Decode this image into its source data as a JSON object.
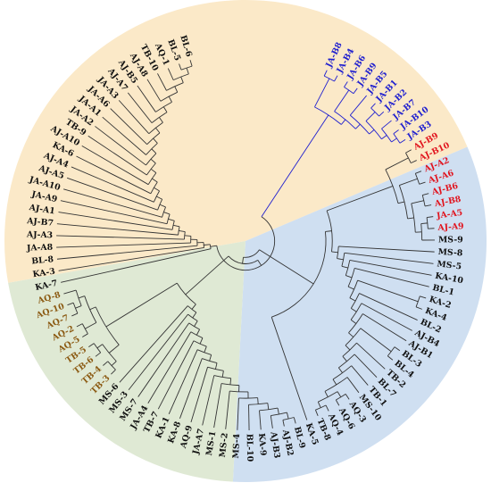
{
  "colors": {
    "sector_yellow": "#fbe9c8",
    "sector_blue": "#cfdff1",
    "sector_green": "#dfe9d4",
    "branch": "#333333",
    "blue": "#1f1fcf",
    "red": "#e1141e",
    "brown": "#8b5a12",
    "black": "#111111"
  },
  "tree": {
    "taxa": [
      {
        "label": "JA-B8",
        "color": "blue"
      },
      {
        "label": "JA-B4",
        "color": "blue"
      },
      {
        "label": "JA-B6",
        "color": "blue"
      },
      {
        "label": "JA-B9",
        "color": "blue"
      },
      {
        "label": "JA-B5",
        "color": "blue"
      },
      {
        "label": "JA-B1",
        "color": "blue"
      },
      {
        "label": "JA-B2",
        "color": "blue"
      },
      {
        "label": "JA-B7",
        "color": "blue"
      },
      {
        "label": "JA-B10",
        "color": "blue"
      },
      {
        "label": "JA-B3",
        "color": "blue"
      },
      {
        "label": "AJ-B9",
        "color": "red"
      },
      {
        "label": "AJ-B10",
        "color": "red"
      },
      {
        "label": "AJ-A2",
        "color": "red"
      },
      {
        "label": "AJ-A6",
        "color": "red"
      },
      {
        "label": "AJ-B6",
        "color": "red"
      },
      {
        "label": "AJ-B8",
        "color": "red"
      },
      {
        "label": "JA-A5",
        "color": "red"
      },
      {
        "label": "AJ-A9",
        "color": "red"
      },
      {
        "label": "MS-9",
        "color": "black"
      },
      {
        "label": "MS-8",
        "color": "black"
      },
      {
        "label": "MS-5",
        "color": "black"
      },
      {
        "label": "KA-10",
        "color": "black"
      },
      {
        "label": "BL-1",
        "color": "black"
      },
      {
        "label": "KA-2",
        "color": "black"
      },
      {
        "label": "KA-4",
        "color": "black"
      },
      {
        "label": "BL-2",
        "color": "black"
      },
      {
        "label": "AJ-B4",
        "color": "black"
      },
      {
        "label": "AJ-B1",
        "color": "black"
      },
      {
        "label": "BL-3",
        "color": "black"
      },
      {
        "label": "BL-4",
        "color": "black"
      },
      {
        "label": "TB-2",
        "color": "black"
      },
      {
        "label": "BL-7",
        "color": "black"
      },
      {
        "label": "TB-1",
        "color": "black"
      },
      {
        "label": "MS-10",
        "color": "black"
      },
      {
        "label": "AQ-3",
        "color": "black"
      },
      {
        "label": "AQ-6",
        "color": "black"
      },
      {
        "label": "AQ-4",
        "color": "black"
      },
      {
        "label": "TB-8",
        "color": "black"
      },
      {
        "label": "KA-5",
        "color": "black"
      },
      {
        "label": "BL-9",
        "color": "black"
      },
      {
        "label": "AJ-B2",
        "color": "black"
      },
      {
        "label": "AJ-B3",
        "color": "black"
      },
      {
        "label": "KA-9",
        "color": "black"
      },
      {
        "label": "BL-10",
        "color": "black"
      },
      {
        "label": "MS-4",
        "color": "black"
      },
      {
        "label": "MS-2",
        "color": "black"
      },
      {
        "label": "MS-1",
        "color": "black"
      },
      {
        "label": "JA-A7",
        "color": "black"
      },
      {
        "label": "AQ-9",
        "color": "black"
      },
      {
        "label": "KA-8",
        "color": "black"
      },
      {
        "label": "KA-1",
        "color": "black"
      },
      {
        "label": "TB-7",
        "color": "black"
      },
      {
        "label": "JA-A4",
        "color": "black"
      },
      {
        "label": "MS-7",
        "color": "black"
      },
      {
        "label": "MS-3",
        "color": "black"
      },
      {
        "label": "MS-6",
        "color": "black"
      },
      {
        "label": "TB-3",
        "color": "brown"
      },
      {
        "label": "TB-4",
        "color": "brown"
      },
      {
        "label": "TB-6",
        "color": "brown"
      },
      {
        "label": "TB-5",
        "color": "brown"
      },
      {
        "label": "AQ-5",
        "color": "brown"
      },
      {
        "label": "AQ-2",
        "color": "brown"
      },
      {
        "label": "AQ-7",
        "color": "brown"
      },
      {
        "label": "AQ-10",
        "color": "brown"
      },
      {
        "label": "AQ-8",
        "color": "brown"
      },
      {
        "label": "KA-7",
        "color": "black"
      },
      {
        "label": "KA-3",
        "color": "black"
      },
      {
        "label": "BL-8",
        "color": "black"
      },
      {
        "label": "JA-A8",
        "color": "black"
      },
      {
        "label": "AJ-A3",
        "color": "black"
      },
      {
        "label": "AJ-B7",
        "color": "black"
      },
      {
        "label": "AJ-A1",
        "color": "black"
      },
      {
        "label": "JA-A9",
        "color": "black"
      },
      {
        "label": "JA-A10",
        "color": "black"
      },
      {
        "label": "AJ-A5",
        "color": "black"
      },
      {
        "label": "AJ-A4",
        "color": "black"
      },
      {
        "label": "KA-6",
        "color": "black"
      },
      {
        "label": "AJ-A10",
        "color": "black"
      },
      {
        "label": "TB-9",
        "color": "black"
      },
      {
        "label": "JA-A2",
        "color": "black"
      },
      {
        "label": "JA-A1",
        "color": "black"
      },
      {
        "label": "JA-A6",
        "color": "black"
      },
      {
        "label": "JA-A3",
        "color": "black"
      },
      {
        "label": "AJ-A7",
        "color": "black"
      },
      {
        "label": "AJ-B5",
        "color": "black"
      },
      {
        "label": "AJ-A8",
        "color": "black"
      },
      {
        "label": "TB-10",
        "color": "black"
      },
      {
        "label": "AQ-1",
        "color": "black"
      },
      {
        "label": "BL-5",
        "color": "black"
      },
      {
        "label": "BL-6",
        "color": "black"
      }
    ]
  }
}
